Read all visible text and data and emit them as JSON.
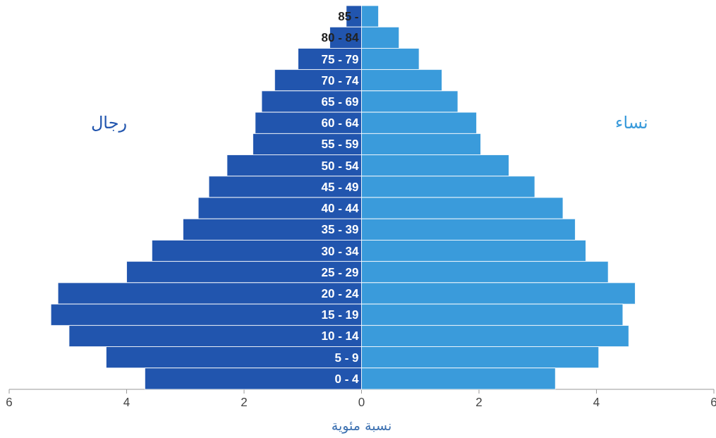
{
  "chart_data": {
    "type": "bar",
    "orientation": "horizontal",
    "stacked": true,
    "xlabel": "نسبة مئوية",
    "categories": [
      "85 -",
      "80 - 84",
      "75 - 79",
      "70 - 74",
      "65 - 69",
      "60 - 64",
      "55 - 59",
      "50 - 54",
      "45 - 49",
      "40 - 44",
      "35 - 39",
      "30 - 34",
      "25 - 29",
      "20 - 24",
      "15 - 19",
      "10 - 14",
      "5 - 9",
      "0 - 4"
    ],
    "series": [
      {
        "name": "رجال",
        "color": "#2155ae",
        "values": [
          -0.26,
          -0.54,
          -1.08,
          -1.48,
          -1.7,
          -1.81,
          -1.85,
          -2.29,
          -2.6,
          -2.78,
          -3.04,
          -3.57,
          -4.0,
          -5.17,
          -5.29,
          -4.98,
          -4.35,
          -3.69
        ]
      },
      {
        "name": "نساء",
        "color": "#3a9bdb",
        "values": [
          0.29,
          0.64,
          0.98,
          1.37,
          1.64,
          1.96,
          2.03,
          2.51,
          2.95,
          3.43,
          3.64,
          3.82,
          4.2,
          4.66,
          4.45,
          4.55,
          4.04,
          3.3
        ]
      }
    ],
    "xlim": [
      -6,
      6
    ],
    "xticks": [
      {
        "value": -6,
        "label": "6"
      },
      {
        "value": -4,
        "label": "4"
      },
      {
        "value": -2,
        "label": "2"
      },
      0,
      2,
      4,
      6
    ]
  }
}
